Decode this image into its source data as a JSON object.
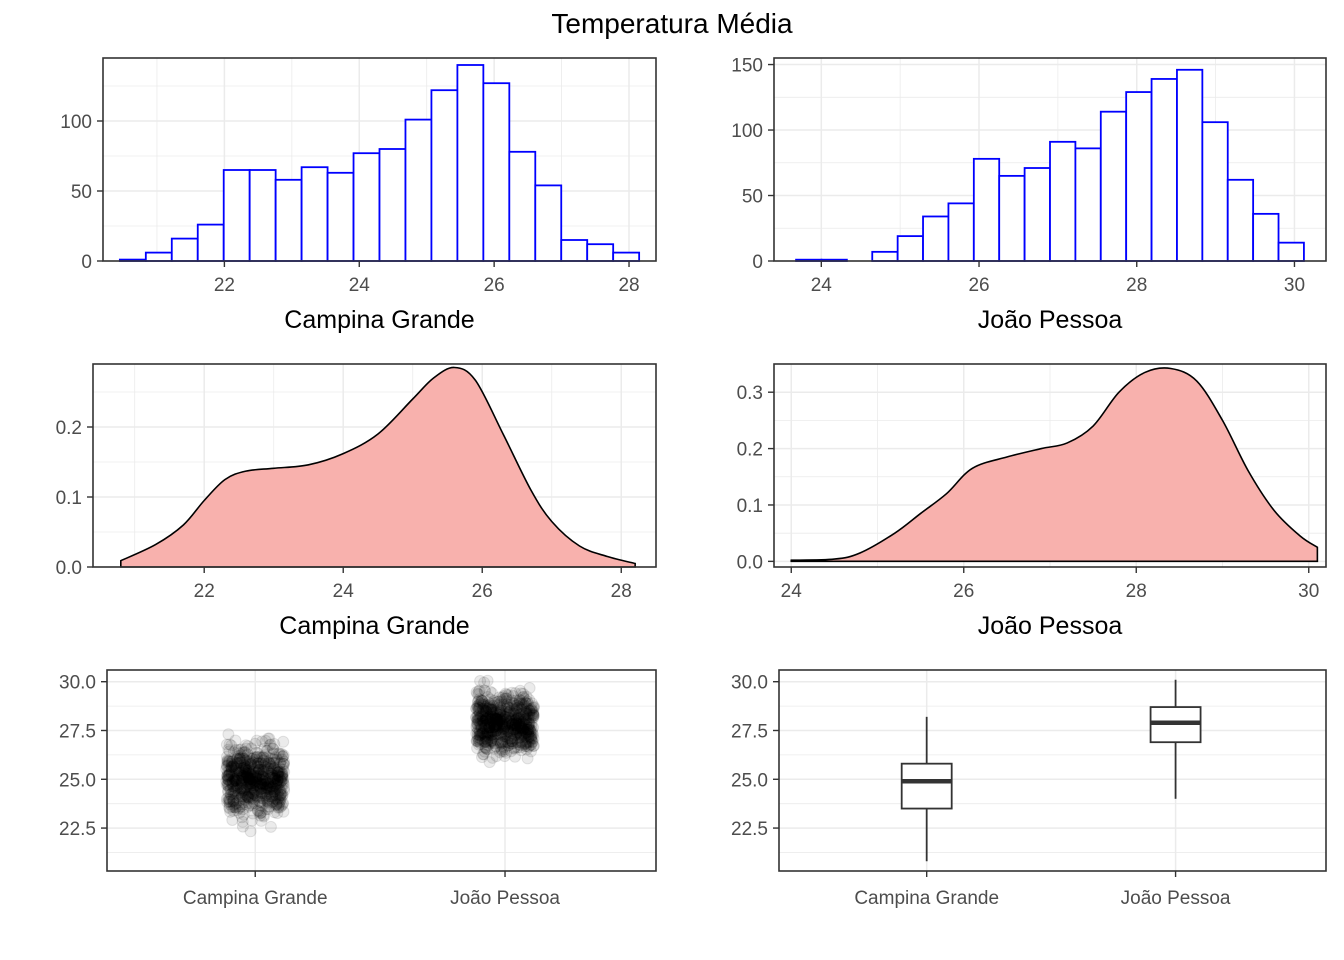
{
  "title": "Temperatura Média",
  "colors": {
    "hist_outline": "#0000ff",
    "hist_fill": "#ffffff",
    "density_fill": "#f8b1ad",
    "density_line": "#000000",
    "points": "#000000",
    "box_line": "#333333",
    "grid": "#ebebeb",
    "panel_border": "#333333"
  },
  "chart_data": [
    {
      "id": "hist-cg",
      "type": "bar",
      "subtype": "histogram",
      "xlabel": "Campina Grande",
      "ylabel": "",
      "xlim": [
        20.2,
        28.4
      ],
      "ylim": [
        0,
        145
      ],
      "xticks": [
        22,
        24,
        26,
        28
      ],
      "yticks": [
        0,
        50,
        100
      ],
      "bin_start": 20.45,
      "bin_width": 0.385,
      "values": [
        1,
        6,
        16,
        26,
        65,
        65,
        58,
        67,
        63,
        77,
        80,
        101,
        122,
        140,
        127,
        78,
        54,
        15,
        12,
        6
      ]
    },
    {
      "id": "hist-jp",
      "type": "bar",
      "subtype": "histogram",
      "xlabel": "João Pessoa",
      "ylabel": "",
      "xlim": [
        23.4,
        30.4
      ],
      "ylim": [
        0,
        155
      ],
      "xticks": [
        24,
        26,
        28,
        30
      ],
      "yticks": [
        0,
        50,
        100,
        150
      ],
      "bin_start": 23.68,
      "bin_width": 0.322,
      "values": [
        1,
        1,
        0,
        7,
        19,
        34,
        44,
        78,
        65,
        71,
        91,
        86,
        114,
        129,
        139,
        146,
        106,
        62,
        36,
        14
      ]
    },
    {
      "id": "density-cg",
      "type": "area",
      "subtype": "density",
      "xlabel": "Campina Grande",
      "ylabel": "",
      "xlim": [
        20.4,
        28.5
      ],
      "ylim": [
        0,
        0.29
      ],
      "xticks": [
        22,
        24,
        26,
        28
      ],
      "yticks": [
        0.0,
        0.1,
        0.2
      ],
      "x": [
        20.8,
        21.3,
        21.7,
        22.0,
        22.3,
        22.6,
        23.0,
        23.5,
        24.0,
        24.5,
        25.0,
        25.3,
        25.6,
        25.9,
        26.3,
        26.7,
        27.0,
        27.4,
        27.8,
        28.2
      ],
      "y": [
        0.009,
        0.032,
        0.06,
        0.095,
        0.125,
        0.137,
        0.141,
        0.146,
        0.162,
        0.19,
        0.24,
        0.27,
        0.285,
        0.267,
        0.19,
        0.11,
        0.065,
        0.03,
        0.015,
        0.005
      ]
    },
    {
      "id": "density-jp",
      "type": "area",
      "subtype": "density",
      "xlabel": "João Pessoa",
      "ylabel": "",
      "xlim": [
        23.8,
        30.2
      ],
      "ylim": [
        -0.01,
        0.35
      ],
      "xticks": [
        24,
        26,
        28,
        30
      ],
      "yticks": [
        0.0,
        0.1,
        0.2,
        0.3
      ],
      "x": [
        24.0,
        24.5,
        24.8,
        25.2,
        25.5,
        25.8,
        26.1,
        26.5,
        26.9,
        27.2,
        27.5,
        27.8,
        28.1,
        28.4,
        28.7,
        29.0,
        29.3,
        29.6,
        29.9,
        30.1
      ],
      "y": [
        0.002,
        0.004,
        0.015,
        0.05,
        0.085,
        0.12,
        0.165,
        0.185,
        0.2,
        0.21,
        0.24,
        0.3,
        0.335,
        0.342,
        0.32,
        0.25,
        0.16,
        0.09,
        0.045,
        0.025
      ]
    },
    {
      "id": "jitter",
      "type": "scatter",
      "subtype": "jitter",
      "xlabel": "",
      "ylabel": "",
      "categories": [
        "Campina Grande",
        "João Pessoa"
      ],
      "ylim": [
        20.3,
        30.6
      ],
      "yticks": [
        22.5,
        25.0,
        27.5,
        30.0
      ],
      "ytick_labels": [
        "22.5",
        "25.0",
        "27.5",
        "30.0"
      ],
      "ranges": [
        [
          20.8,
          28.2
        ],
        [
          24.0,
          30.1
        ]
      ],
      "centers": [
        24.9,
        27.9
      ],
      "point_alpha": 0.08
    },
    {
      "id": "boxplot",
      "type": "box",
      "xlabel": "",
      "ylabel": "",
      "categories": [
        "Campina Grande",
        "João Pessoa"
      ],
      "ylim": [
        20.3,
        30.6
      ],
      "yticks": [
        22.5,
        25.0,
        27.5,
        30.0
      ],
      "ytick_labels": [
        "22.5",
        "25.0",
        "27.5",
        "30.0"
      ],
      "boxes": [
        {
          "name": "Campina Grande",
          "min": 20.8,
          "q1": 23.5,
          "median": 24.9,
          "q3": 25.8,
          "max": 28.2
        },
        {
          "name": "João Pessoa",
          "min": 24.0,
          "q1": 26.9,
          "median": 27.9,
          "q3": 28.7,
          "max": 30.1
        }
      ]
    }
  ]
}
